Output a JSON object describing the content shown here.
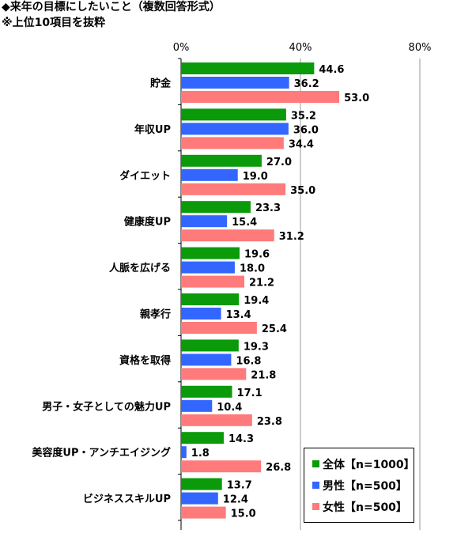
{
  "title": "◆来年の目標にしたいこと（複数回答形式）",
  "subtitle": "※上位10項目を抜粋",
  "colors": {
    "all": "#0a9a0a",
    "male": "#3366ff",
    "female": "#ff7a7a"
  },
  "chart_data": {
    "type": "bar",
    "orientation": "horizontal",
    "categories": [
      "貯金",
      "年収UP",
      "ダイエット",
      "健康度UP",
      "人脈を広げる",
      "親孝行",
      "資格を取得",
      "男子・女子としての魅力UP",
      "美容度UP・アンチエイジング",
      "ビジネススキルUP"
    ],
    "series": [
      {
        "name": "全体【n=1000】",
        "values": [
          44.6,
          35.2,
          27.0,
          23.3,
          19.6,
          19.4,
          19.3,
          17.1,
          14.3,
          13.7
        ]
      },
      {
        "name": "男性【n=500】",
        "values": [
          36.2,
          36.0,
          19.0,
          15.4,
          18.0,
          13.4,
          16.8,
          10.4,
          1.8,
          12.4
        ]
      },
      {
        "name": "女性【n=500】",
        "values": [
          53.0,
          34.4,
          35.0,
          31.2,
          21.2,
          25.4,
          21.8,
          23.8,
          26.8,
          15.0
        ]
      }
    ],
    "xlim": [
      0,
      80
    ],
    "xticks": [
      "0%",
      "40%",
      "80%"
    ],
    "grid": true,
    "legend": "bottom-right"
  }
}
